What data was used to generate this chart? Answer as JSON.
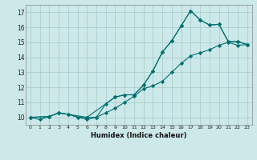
{
  "xlabel": "Humidex (Indice chaleur)",
  "bg_color": "#cce8e8",
  "grid_color": "#aacece",
  "line_color": "#007070",
  "xlim": [
    -0.5,
    23.5
  ],
  "ylim": [
    9.5,
    17.5
  ],
  "xticks": [
    0,
    1,
    2,
    3,
    4,
    5,
    6,
    7,
    8,
    9,
    10,
    11,
    12,
    13,
    14,
    15,
    16,
    17,
    18,
    19,
    20,
    21,
    22,
    23
  ],
  "yticks": [
    10,
    11,
    12,
    13,
    14,
    15,
    16,
    17
  ],
  "line1_x": [
    0,
    1,
    2,
    3,
    4,
    5,
    6,
    7,
    8,
    9,
    10,
    11,
    12,
    13,
    14,
    15,
    16,
    17,
    18,
    19,
    20,
    21,
    22,
    23
  ],
  "line1_y": [
    10.0,
    9.85,
    10.05,
    10.3,
    10.2,
    10.0,
    10.0,
    10.0,
    10.3,
    10.6,
    11.0,
    11.4,
    11.9,
    12.1,
    12.4,
    13.0,
    13.6,
    14.1,
    14.3,
    14.5,
    14.8,
    15.0,
    14.8,
    14.85
  ],
  "line2_x": [
    0,
    2,
    3,
    4,
    6,
    7,
    8,
    9,
    10,
    11,
    12,
    13,
    14,
    15,
    16,
    17,
    18,
    19,
    20,
    21,
    22,
    23
  ],
  "line2_y": [
    10.0,
    10.05,
    10.3,
    10.2,
    9.85,
    10.0,
    10.9,
    11.35,
    11.5,
    11.5,
    12.15,
    13.1,
    14.35,
    15.1,
    16.1,
    17.1,
    16.5,
    16.15,
    16.2,
    15.05,
    15.05,
    14.85
  ],
  "line3_x": [
    0,
    2,
    3,
    6,
    9,
    10,
    11,
    12,
    13,
    14,
    15,
    16,
    17,
    18,
    19,
    20,
    21,
    22,
    23
  ],
  "line3_y": [
    10.0,
    10.05,
    10.3,
    10.0,
    11.35,
    11.5,
    11.5,
    12.15,
    13.1,
    14.35,
    15.1,
    16.1,
    17.1,
    16.5,
    16.15,
    16.2,
    15.05,
    15.05,
    14.85
  ]
}
